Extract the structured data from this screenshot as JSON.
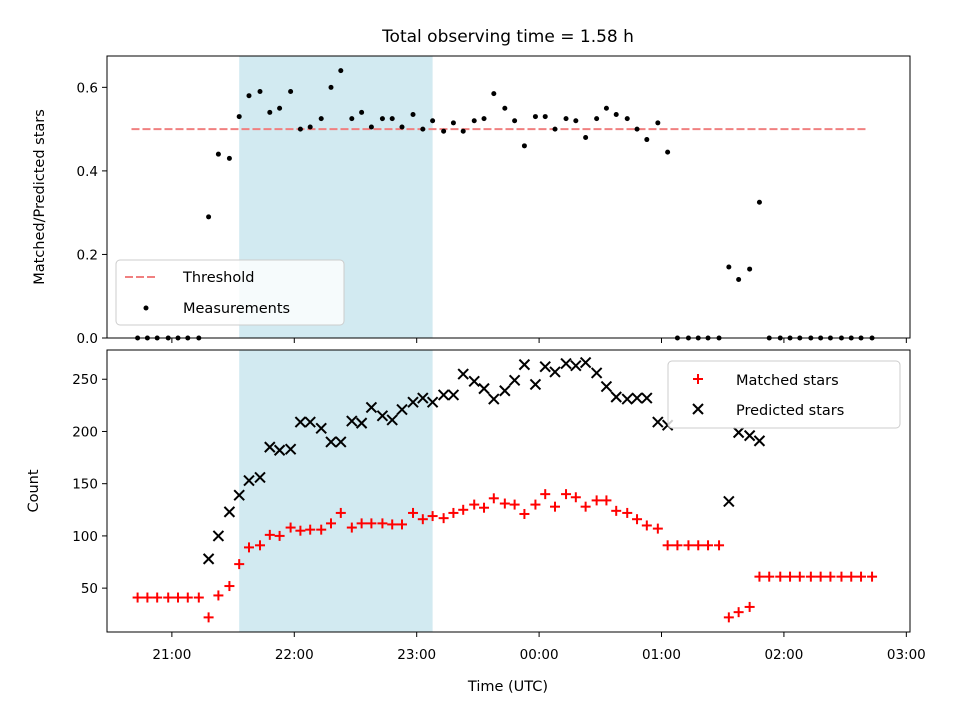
{
  "chart_data": {
    "title": "Total observing time = 1.58 h",
    "xlabel": "Time (UTC)",
    "x_tick_labels": [
      "21:00",
      "22:00",
      "23:00",
      "00:00",
      "01:00",
      "02:00",
      "03:00"
    ],
    "x_ticks_hours": [
      21,
      22,
      23,
      24,
      25,
      26,
      27
    ],
    "xlim_hours": [
      20.47,
      27.03
    ],
    "observing_window_hours": [
      21.55,
      23.13
    ],
    "window_color": "#add8e6",
    "panels": [
      {
        "type": "scatter",
        "ylabel": "Matched/Predicted stars",
        "ylim": [
          0,
          0.675
        ],
        "y_ticks": [
          0,
          0.2,
          0.4,
          0.6
        ],
        "y_tick_labels": [
          "0.0",
          "0.2",
          "0.4",
          "0.6"
        ],
        "legend_position": "lower-left",
        "legend": [
          {
            "label": "Threshold",
            "style": "dashed-line",
            "color": "#f08080"
          },
          {
            "label": "Measurements",
            "style": "dot",
            "color": "#000000"
          }
        ],
        "threshold": {
          "value": 0.5,
          "x_start": 20.67,
          "x_end": 26.67,
          "color": "#f08080"
        },
        "series": [
          {
            "name": "Measurements",
            "color": "#000000",
            "x": [
              20.72,
              20.8,
              20.88,
              20.97,
              21.05,
              21.13,
              21.22,
              21.3,
              21.38,
              21.47,
              21.55,
              21.63,
              21.72,
              21.8,
              21.88,
              21.97,
              22.05,
              22.13,
              22.22,
              22.3,
              22.38,
              22.47,
              22.55,
              22.63,
              22.72,
              22.8,
              22.88,
              22.97,
              23.05,
              23.13,
              23.22,
              23.3,
              23.38,
              23.47,
              23.55,
              23.63,
              23.72,
              23.8,
              23.88,
              23.97,
              24.05,
              24.13,
              24.22,
              24.3,
              24.38,
              24.47,
              24.55,
              24.63,
              24.72,
              24.8,
              24.88,
              24.97,
              25.05,
              25.13,
              25.22,
              25.3,
              25.38,
              25.47,
              25.55,
              25.63,
              25.72,
              25.8,
              25.88,
              25.97,
              26.05,
              26.13,
              26.22,
              26.3,
              26.38,
              26.47,
              26.55,
              26.63,
              26.72
            ],
            "y": [
              0,
              0,
              0,
              0,
              0,
              0,
              0,
              0.29,
              0.44,
              0.43,
              0.53,
              0.58,
              0.59,
              0.54,
              0.55,
              0.59,
              0.5,
              0.505,
              0.525,
              0.6,
              0.64,
              0.525,
              0.54,
              0.505,
              0.525,
              0.525,
              0.505,
              0.535,
              0.5,
              0.52,
              0.495,
              0.515,
              0.495,
              0.52,
              0.525,
              0.585,
              0.55,
              0.52,
              0.46,
              0.53,
              0.53,
              0.5,
              0.525,
              0.52,
              0.48,
              0.525,
              0.55,
              0.535,
              0.525,
              0.5,
              0.475,
              0.515,
              0.445,
              0,
              0,
              0,
              0,
              0,
              0.17,
              0.14,
              0.165,
              0.325,
              0,
              0,
              0,
              0,
              0,
              0,
              0,
              0,
              0,
              0,
              0
            ]
          }
        ]
      },
      {
        "type": "scatter",
        "ylabel": "Count",
        "ylim": [
          8,
          278
        ],
        "y_ticks": [
          50,
          100,
          150,
          200,
          250
        ],
        "y_tick_labels": [
          "50",
          "100",
          "150",
          "200",
          "250"
        ],
        "legend_position": "top-right",
        "legend": [
          {
            "label": "Matched stars",
            "style": "plus",
            "color": "#ff0000"
          },
          {
            "label": "Predicted stars",
            "style": "x",
            "color": "#000000"
          }
        ],
        "series": [
          {
            "name": "Matched stars",
            "color": "#ff0000",
            "marker": "plus",
            "x": [
              20.72,
              20.8,
              20.88,
              20.97,
              21.05,
              21.13,
              21.22,
              21.3,
              21.38,
              21.47,
              21.55,
              21.63,
              21.72,
              21.8,
              21.88,
              21.97,
              22.05,
              22.13,
              22.22,
              22.3,
              22.38,
              22.47,
              22.55,
              22.63,
              22.72,
              22.8,
              22.88,
              22.97,
              23.05,
              23.13,
              23.22,
              23.3,
              23.38,
              23.47,
              23.55,
              23.63,
              23.72,
              23.8,
              23.88,
              23.97,
              24.05,
              24.13,
              24.22,
              24.3,
              24.38,
              24.47,
              24.55,
              24.63,
              24.72,
              24.8,
              24.88,
              24.97,
              25.05,
              25.13,
              25.22,
              25.3,
              25.38,
              25.47,
              25.55,
              25.63,
              25.72,
              25.8,
              25.88,
              25.97,
              26.05,
              26.13,
              26.22,
              26.3,
              26.38,
              26.47,
              26.55,
              26.63,
              26.72
            ],
            "y": [
              41,
              41,
              41,
              41,
              41,
              41,
              41,
              22,
              43,
              52,
              73,
              89,
              91,
              101,
              100,
              108,
              105,
              106,
              106,
              112,
              122,
              108,
              112,
              112,
              112,
              111,
              111,
              122,
              116,
              119,
              117,
              122,
              125,
              130,
              127,
              136,
              131,
              130,
              121,
              130,
              140,
              128,
              140,
              137,
              128,
              134,
              134,
              124,
              122,
              116,
              110,
              107,
              91,
              91,
              91,
              91,
              91,
              91,
              22,
              27,
              32,
              61,
              61,
              61,
              61,
              61,
              61,
              61,
              61,
              61,
              61,
              61,
              61
            ]
          },
          {
            "name": "Predicted stars",
            "color": "#000000",
            "marker": "x",
            "x": [
              21.3,
              21.38,
              21.47,
              21.55,
              21.63,
              21.72,
              21.8,
              21.88,
              21.97,
              22.05,
              22.13,
              22.22,
              22.3,
              22.38,
              22.47,
              22.55,
              22.63,
              22.72,
              22.8,
              22.88,
              22.97,
              23.05,
              23.13,
              23.22,
              23.3,
              23.38,
              23.47,
              23.55,
              23.63,
              23.72,
              23.8,
              23.88,
              23.97,
              24.05,
              24.13,
              24.22,
              24.3,
              24.38,
              24.47,
              24.55,
              24.63,
              24.72,
              24.8,
              24.88,
              24.97,
              25.05,
              25.55,
              25.63,
              25.72,
              25.8
            ],
            "y": [
              78,
              100,
              123,
              139,
              153,
              156,
              185,
              182,
              183,
              209,
              209,
              203,
              190,
              190,
              210,
              208,
              223,
              215,
              211,
              221,
              228,
              232,
              228,
              235,
              235,
              255,
              248,
              241,
              231,
              239,
              249,
              264,
              245,
              262,
              257,
              265,
              263,
              266,
              256,
              243,
              233,
              231,
              232,
              232,
              209,
              206,
              133,
              199,
              196,
              191
            ]
          }
        ]
      }
    ]
  }
}
